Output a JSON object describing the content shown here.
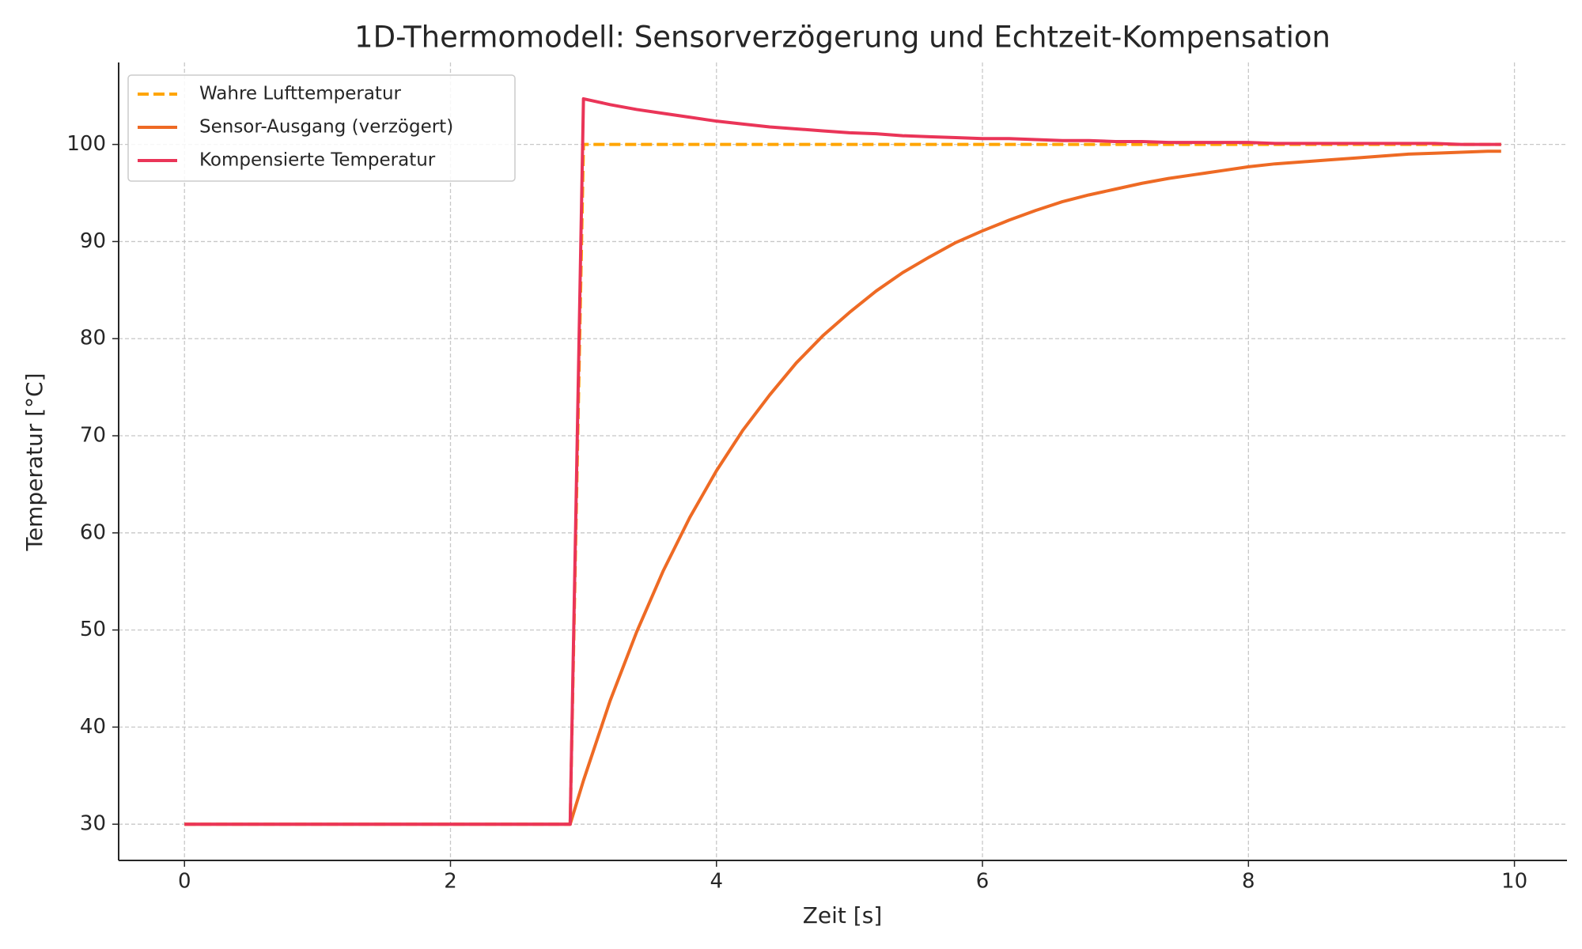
{
  "chart_data": {
    "type": "line",
    "title": "1D-Thermomodell: Sensorverzögerung und Echtzeit-Kompensation",
    "x_label": "Zeit [s]",
    "y_label": "Temperatur [°C]",
    "x": [
      0,
      2.9,
      3.0,
      3.2,
      3.4,
      3.6,
      3.8,
      4.0,
      4.2,
      4.4,
      4.6,
      4.8,
      5.0,
      5.2,
      5.4,
      5.6,
      5.8,
      6.0,
      6.2,
      6.4,
      6.6,
      6.8,
      7.0,
      7.2,
      7.4,
      7.6,
      7.8,
      8.0,
      8.2,
      8.4,
      8.6,
      8.8,
      9.0,
      9.2,
      9.4,
      9.6,
      9.8,
      9.9
    ],
    "series": [
      {
        "name": "Wahre Lufttemperatur",
        "color": "#ffa500",
        "dashed": true,
        "values": [
          30,
          30,
          100,
          100,
          100,
          100,
          100,
          100,
          100,
          100,
          100,
          100,
          100,
          100,
          100,
          100,
          100,
          100,
          100,
          100,
          100,
          100,
          100,
          100,
          100,
          100,
          100,
          100,
          100,
          100,
          100,
          100,
          100,
          100,
          100,
          100,
          100,
          100
        ]
      },
      {
        "name": "Sensor-Ausgang (verzögert)",
        "color": "#ee6a24",
        "dashed": false,
        "values": [
          30,
          30,
          34.5,
          42.7,
          49.8,
          56.1,
          61.6,
          66.4,
          70.6,
          74.2,
          77.5,
          80.3,
          82.7,
          84.9,
          86.8,
          88.4,
          89.9,
          91.1,
          92.2,
          93.2,
          94.1,
          94.8,
          95.4,
          96.0,
          96.5,
          96.9,
          97.3,
          97.7,
          98.0,
          98.2,
          98.4,
          98.6,
          98.8,
          99.0,
          99.1,
          99.2,
          99.3,
          99.3
        ]
      },
      {
        "name": "Kompensierte Temperatur",
        "color": "#ea3558",
        "dashed": false,
        "values": [
          30,
          30,
          104.7,
          104.1,
          103.6,
          103.2,
          102.8,
          102.4,
          102.1,
          101.8,
          101.6,
          101.4,
          101.2,
          101.1,
          100.9,
          100.8,
          100.7,
          100.6,
          100.6,
          100.5,
          100.4,
          100.4,
          100.3,
          100.3,
          100.2,
          100.2,
          100.2,
          100.2,
          100.1,
          100.1,
          100.1,
          100.1,
          100.1,
          100.1,
          100.1,
          100.0,
          100.0,
          100.0
        ]
      }
    ],
    "xlim": [
      -0.495,
      10.395
    ],
    "ylim": [
      26.27,
      108.44
    ],
    "xticks": [
      0,
      2,
      4,
      6,
      8,
      10
    ],
    "yticks": [
      30,
      40,
      50,
      60,
      70,
      80,
      90,
      100
    ],
    "grid": true,
    "legend": "upper-left"
  }
}
